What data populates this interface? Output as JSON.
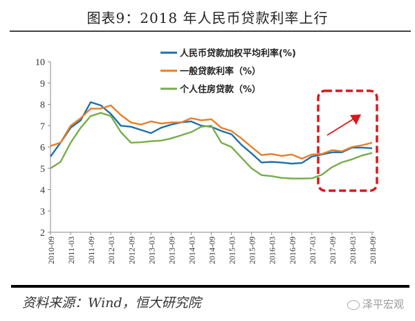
{
  "title": "图表9：2018 年人民币贷款利率上行",
  "source": "资料来源：Wind，恒大研究院",
  "watermark": "泽平宏观",
  "chart_data": {
    "type": "line",
    "title": "图表9：2018 年人民币贷款利率上行",
    "xlabel": "",
    "ylabel": "",
    "ylim": [
      2,
      10
    ],
    "yticks": [
      "2",
      "3",
      "4",
      "5",
      "6",
      "7",
      "8",
      "9",
      "10"
    ],
    "xtick_labels": [
      "2010-09",
      "2011-03",
      "2011-09",
      "2012-03",
      "2012-09",
      "2013-03",
      "2013-09",
      "2014-03",
      "2014-09",
      "2015-03",
      "2015-09",
      "2016-03",
      "2016-09",
      "2017-03",
      "2017-09",
      "2018-03",
      "2018-09"
    ],
    "x": [
      "2010-09",
      "2010-12",
      "2011-03",
      "2011-06",
      "2011-09",
      "2011-12",
      "2012-03",
      "2012-06",
      "2012-09",
      "2012-12",
      "2013-03",
      "2013-06",
      "2013-09",
      "2013-12",
      "2014-03",
      "2014-06",
      "2014-09",
      "2014-12",
      "2015-03",
      "2015-06",
      "2015-09",
      "2015-12",
      "2016-03",
      "2016-06",
      "2016-09",
      "2016-12",
      "2017-03",
      "2017-06",
      "2017-09",
      "2017-12",
      "2018-03",
      "2018-06",
      "2018-09"
    ],
    "grid": false,
    "legend_position": "top",
    "series": [
      {
        "name": "人民币贷款加权平均利率(%)",
        "color": "#1f6fa8",
        "values": [
          5.55,
          6.2,
          6.9,
          7.25,
          8.1,
          7.95,
          7.55,
          7.0,
          6.95,
          6.8,
          6.65,
          6.9,
          7.05,
          7.15,
          7.2,
          7.0,
          6.95,
          6.75,
          6.6,
          6.1,
          5.7,
          5.27,
          5.3,
          5.27,
          5.22,
          5.25,
          5.55,
          5.65,
          5.75,
          5.75,
          5.97,
          5.97,
          5.94
        ]
      },
      {
        "name": "一般贷款利率（%）",
        "color": "#e67e2a",
        "values": [
          6.05,
          6.2,
          7.0,
          7.35,
          7.8,
          7.8,
          7.95,
          7.5,
          7.15,
          7.05,
          7.2,
          7.1,
          7.15,
          7.15,
          7.35,
          7.25,
          7.3,
          6.9,
          6.75,
          6.4,
          6.0,
          5.62,
          5.67,
          5.58,
          5.65,
          5.45,
          5.65,
          5.67,
          5.85,
          5.8,
          6.0,
          6.08,
          6.2
        ]
      },
      {
        "name": "个人住房贷款（%）",
        "color": "#76ad4a",
        "values": [
          5.0,
          5.3,
          6.2,
          6.9,
          7.45,
          7.6,
          7.45,
          6.7,
          6.2,
          6.22,
          6.27,
          6.3,
          6.4,
          6.55,
          6.7,
          6.95,
          7.0,
          6.2,
          6.0,
          5.5,
          5.0,
          4.68,
          4.63,
          4.55,
          4.52,
          4.52,
          4.53,
          4.7,
          5.05,
          5.28,
          5.42,
          5.6,
          5.72
        ]
      }
    ],
    "annotation": {
      "type": "dashed-box-with-arrow",
      "color": "#d7191c",
      "from": "2017-03",
      "to": "2018-09"
    }
  }
}
